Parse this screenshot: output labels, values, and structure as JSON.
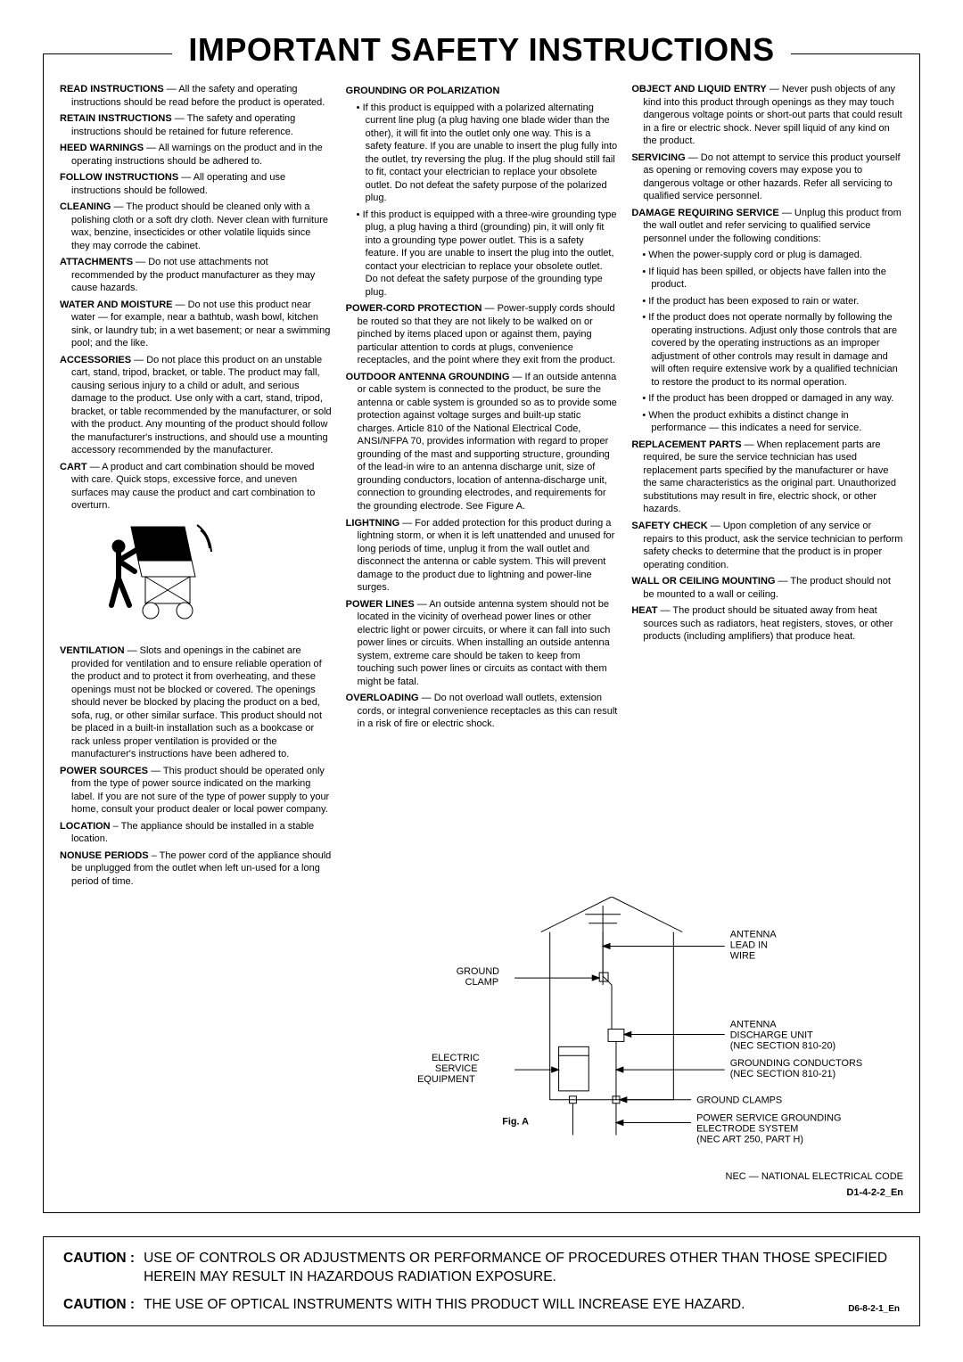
{
  "title": "IMPORTANT SAFETY INSTRUCTIONS",
  "title_fontsize": 36,
  "colors": {
    "text": "#000000",
    "bg": "#ffffff",
    "rule": "#000000"
  },
  "col1": [
    {
      "term": "READ INSTRUCTIONS",
      "body": " — All the safety and operating instructions should be read before the product is operated."
    },
    {
      "term": "RETAIN INSTRUCTIONS",
      "body": " — The safety and operating instructions should be retained for future reference."
    },
    {
      "term": "HEED WARNINGS",
      "body": " — All warnings on the product and in the operating instructions should be adhered to."
    },
    {
      "term": "FOLLOW INSTRUCTIONS",
      "body": " — All operating and use instructions should be followed."
    },
    {
      "term": "CLEANING",
      "body": " — The product should be cleaned only with a polishing cloth or a soft dry cloth. Never clean with furniture wax, benzine, insecticides or other volatile liquids since they may corrode the cabinet."
    },
    {
      "term": "ATTACHMENTS",
      "body": " — Do not use attachments not recommended by the product manufacturer as they may cause hazards."
    },
    {
      "term": "WATER AND MOISTURE",
      "body": " — Do not use this product near water — for example, near a bathtub, wash bowl, kitchen sink, or laundry tub; in a wet basement; or near a swimming pool; and the like."
    },
    {
      "term": "ACCESSORIES",
      "body": " — Do not place this product on an unstable cart, stand, tripod, bracket, or table. The product may fall, causing serious injury to a child or adult, and serious damage to the product. Use only with a cart, stand, tripod, bracket, or table recommended by the manufacturer, or sold with the product. Any mounting of the product should follow the manufacturer's instructions, and should use a mounting accessory recommended by the manufacturer."
    },
    {
      "term": "CART",
      "body": " — A product and cart combination should be moved with care. Quick stops, excessive force, and uneven surfaces may cause the product and cart combination to overturn."
    }
  ],
  "col1b": [
    {
      "term": "VENTILATION",
      "body": " — Slots and openings in the cabinet are provided for ventilation and to ensure reliable operation of the product and to protect it from overheating, and these openings must not be blocked or covered. The openings should never be blocked by placing the product on a bed, sofa, rug, or other similar surface. This product should not be placed in a built-in installation such as a bookcase or rack unless proper ventilation is provided or the manufacturer's instructions have been adhered to."
    },
    {
      "term": "POWER SOURCES",
      "body": " — This product should be operated only from the type of power source indicated on the marking label. If you are not sure of the type of power supply to your home, consult your product dealer or local power company."
    },
    {
      "term": "LOCATION",
      "body": " – The appliance should be installed in a stable location."
    },
    {
      "term": "NONUSE PERIODS",
      "body": " – The power cord of the appliance should be unplugged from the outlet when left un-used for a long period of time."
    }
  ],
  "col2": {
    "hd1": "GROUNDING OR POLARIZATION",
    "b1": "If this product is equipped with a polarized alternating current line plug (a plug having one blade wider than the other), it will fit into the outlet only one way. This is a safety feature. If you are unable to insert the plug fully into the outlet, try reversing the plug. If the plug should still fail to fit, contact your electrician to replace your obsolete outlet. Do not defeat the safety purpose of the polarized plug.",
    "b2": "If this product is equipped with a three-wire grounding type plug, a plug having a third (grounding) pin, it will only fit into a grounding type power outlet. This is a safety feature. If you are unable to insert the plug into the outlet, contact your electrician to replace your obsolete outlet. Do not defeat the safety purpose of the grounding type plug.",
    "items": [
      {
        "term": "POWER-CORD PROTECTION",
        "body": " — Power-supply cords should be routed so that they are not likely to be walked on or pinched by items placed upon or against them, paying particular attention to cords at plugs, convenience receptacles, and the point where they exit from the product."
      },
      {
        "term": "OUTDOOR ANTENNA GROUNDING",
        "body": " — If an outside antenna or cable system is connected to the product, be sure the antenna or cable system is grounded so as to provide some protection against voltage surges and built-up static charges. Article 810 of the National Electrical Code, ANSI/NFPA 70, provides information with regard to proper grounding of the mast and supporting structure, grounding of the lead-in wire to an antenna discharge unit, size of grounding conductors, location of antenna-discharge unit, connection to grounding electrodes, and requirements for the grounding electrode. See Figure A."
      },
      {
        "term": "LIGHTNING",
        "body": " — For added protection for this product during a lightning storm, or when it is left unattended and unused for long periods of time, unplug it from the wall outlet and disconnect the antenna or cable system. This will prevent damage to the product due to lightning and power-line surges."
      },
      {
        "term": "POWER LINES",
        "body": " — An outside antenna system should not be located in the vicinity of overhead power lines or other electric light or power circuits, or where it can fall into such power lines or circuits. When installing an outside antenna system, extreme care should be taken to keep from touching such power lines or circuits as contact with them might be fatal."
      },
      {
        "term": "OVERLOADING",
        "body": " — Do not overload wall outlets, extension cords, or integral convenience receptacles as this can result in a risk of fire or electric shock."
      }
    ]
  },
  "col3": {
    "items": [
      {
        "term": "OBJECT AND LIQUID ENTRY",
        "body": " — Never push objects of any kind into this product through openings as they may touch dangerous voltage points or short-out parts that could result in a fire or electric shock. Never spill liquid of any kind on the product."
      },
      {
        "term": "SERVICING",
        "body": " — Do not attempt to service this product yourself as opening or removing covers may expose you to dangerous voltage or other hazards. Refer all servicing to qualified service personnel."
      }
    ],
    "damage_hd": "DAMAGE REQUIRING SERVICE",
    "damage_body": " — Unplug this product from the wall outlet and refer servicing to qualified service personnel under the following conditions:",
    "damage_bul": [
      "When the power-supply cord or plug is damaged.",
      "If liquid has been spilled, or objects have fallen into the product.",
      "If the product has been exposed to rain or water.",
      "If the product does not operate normally by following the operating instructions. Adjust only those controls that are covered by the operating instructions as an improper adjustment of other controls may result in damage and will often require extensive work by a qualified technician to restore the product to its normal operation.",
      "If the product has been dropped or damaged in any way.",
      "When the product exhibits a distinct change in performance — this indicates a need for service."
    ],
    "items2": [
      {
        "term": "REPLACEMENT PARTS",
        "body": " — When replacement parts are required, be sure the service technician has used replacement parts specified by the manufacturer or have the same characteristics as the original part. Unauthorized substitutions may result in fire, electric shock, or other hazards."
      },
      {
        "term": "SAFETY CHECK",
        "body": " — Upon completion of any service or repairs to this product, ask the service technician to perform safety checks to determine that the product is in proper operating condition."
      },
      {
        "term": "WALL OR CEILING MOUNTING",
        "body": " — The product should not be mounted to a wall or ceiling."
      },
      {
        "term": "HEAT",
        "body": " — The product should be situated away from heat sources such as radiators, heat registers, stoves, or other products (including amplifiers) that produce heat."
      }
    ]
  },
  "figure": {
    "caption": "Fig. A",
    "labels": {
      "antenna": "ANTENNA\nLEAD IN\nWIRE",
      "ground_clamp": "GROUND\nCLAMP",
      "discharge": "ANTENNA\nDISCHARGE UNIT\n(NEC SECTION 810-20)",
      "electric": "ELECTRIC\nSERVICE\nEQUIPMENT",
      "conductors": "GROUNDING CONDUCTORS\n(NEC SECTION 810-21)",
      "clamps": "GROUND CLAMPS",
      "pse": "POWER SERVICE GROUNDING\nELECTRODE SYSTEM\n(NEC ART 250, PART H)",
      "nec": "NEC — NATIONAL ELECTRICAL CODE"
    },
    "svg": {
      "stroke": "#000000",
      "stroke_width": 1
    }
  },
  "doc_code": "D1-4-2-2_En",
  "caution": {
    "label": "CAUTION :",
    "line1": "USE OF CONTROLS OR ADJUSTMENTS OR PERFORMANCE OF PROCEDURES OTHER THAN THOSE SPECIFIED HEREIN MAY RESULT IN HAZARDOUS RADIATION EXPOSURE.",
    "line2": "THE USE OF OPTICAL INSTRUMENTS WITH THIS PRODUCT WILL INCREASE EYE HAZARD.",
    "code": "D6-8-2-1_En"
  }
}
